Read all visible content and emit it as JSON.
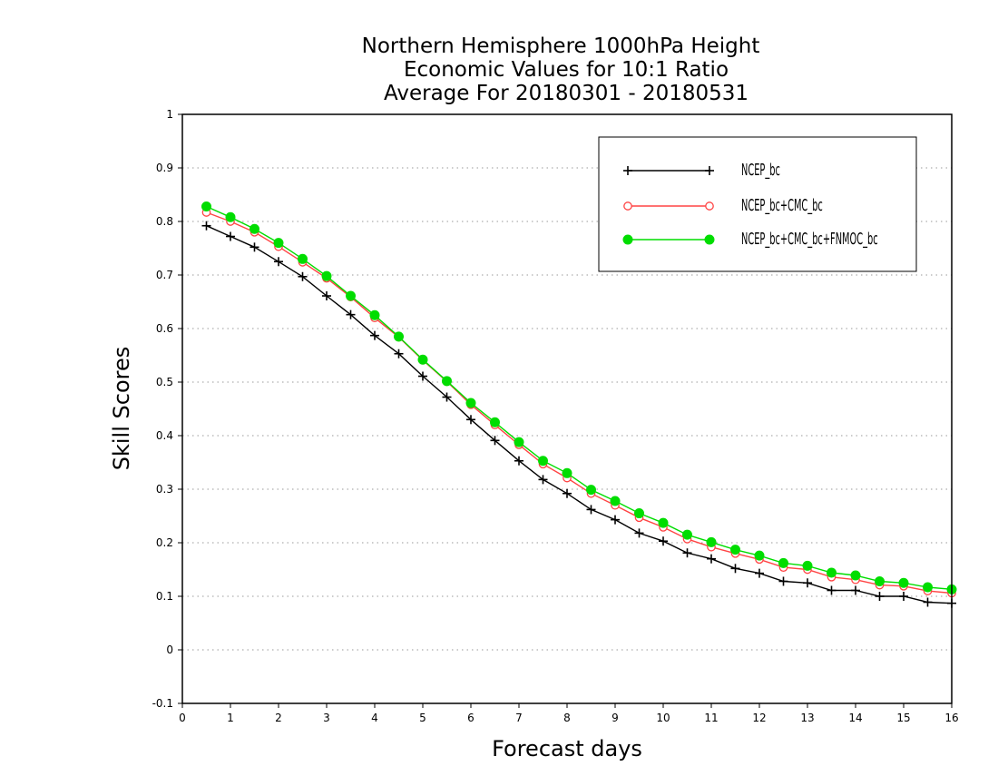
{
  "chart_data": {
    "type": "line",
    "title": [
      "Northern Hemisphere 1000hPa Height",
      "Economic Values for 10:1 Ratio",
      "Average For 20180301 - 20180531"
    ],
    "xlabel": "Forecast days",
    "ylabel": "Skill Scores",
    "xlim": [
      0,
      16
    ],
    "ylim": [
      -0.1,
      1
    ],
    "x_ticks": [
      "0",
      "1",
      "2",
      "3",
      "4",
      "5",
      "6",
      "7",
      "8",
      "9",
      "10",
      "11",
      "12",
      "13",
      "14",
      "15",
      "16"
    ],
    "y_ticks": [
      "-0.1",
      "0",
      "0.1",
      "0.2",
      "0.3",
      "0.4",
      "0.5",
      "0.6",
      "0.7",
      "0.8",
      "0.9",
      "1"
    ],
    "grid": "horizontal dotted",
    "legend_position": "top-right",
    "x": [
      0.5,
      1,
      1.5,
      2,
      2.5,
      3,
      3.5,
      4,
      4.5,
      5,
      5.5,
      6,
      6.5,
      7,
      7.5,
      8,
      8.5,
      9,
      9.5,
      10,
      10.5,
      11,
      11.5,
      12,
      12.5,
      13,
      13.5,
      14,
      14.5,
      15,
      15.5,
      16
    ],
    "series": [
      {
        "name": "NCEP_bc",
        "color": "#000000",
        "marker": "plus",
        "values": [
          0.792,
          0.772,
          0.752,
          0.725,
          0.697,
          0.661,
          0.626,
          0.587,
          0.553,
          0.511,
          0.472,
          0.43,
          0.391,
          0.353,
          0.318,
          0.292,
          0.262,
          0.243,
          0.218,
          0.203,
          0.181,
          0.17,
          0.152,
          0.143,
          0.128,
          0.125,
          0.111,
          0.111,
          0.1,
          0.1,
          0.089,
          0.087
        ]
      },
      {
        "name": "NCEP_bc+CMC_bc",
        "color": "#ff4444",
        "marker": "open-circle",
        "values": [
          0.817,
          0.8,
          0.78,
          0.753,
          0.724,
          0.694,
          0.659,
          0.62,
          0.584,
          0.541,
          0.501,
          0.458,
          0.42,
          0.383,
          0.347,
          0.321,
          0.292,
          0.27,
          0.247,
          0.229,
          0.207,
          0.192,
          0.18,
          0.169,
          0.154,
          0.15,
          0.136,
          0.131,
          0.121,
          0.119,
          0.11,
          0.106
        ]
      },
      {
        "name": "NCEP_bc+CMC_bc+FNMOC_bc",
        "color": "#00dd00",
        "marker": "filled-circle",
        "values": [
          0.828,
          0.808,
          0.786,
          0.76,
          0.73,
          0.698,
          0.661,
          0.625,
          0.585,
          0.542,
          0.502,
          0.461,
          0.425,
          0.388,
          0.353,
          0.33,
          0.299,
          0.278,
          0.255,
          0.237,
          0.215,
          0.201,
          0.187,
          0.176,
          0.162,
          0.157,
          0.144,
          0.139,
          0.128,
          0.125,
          0.117,
          0.113
        ]
      }
    ]
  }
}
